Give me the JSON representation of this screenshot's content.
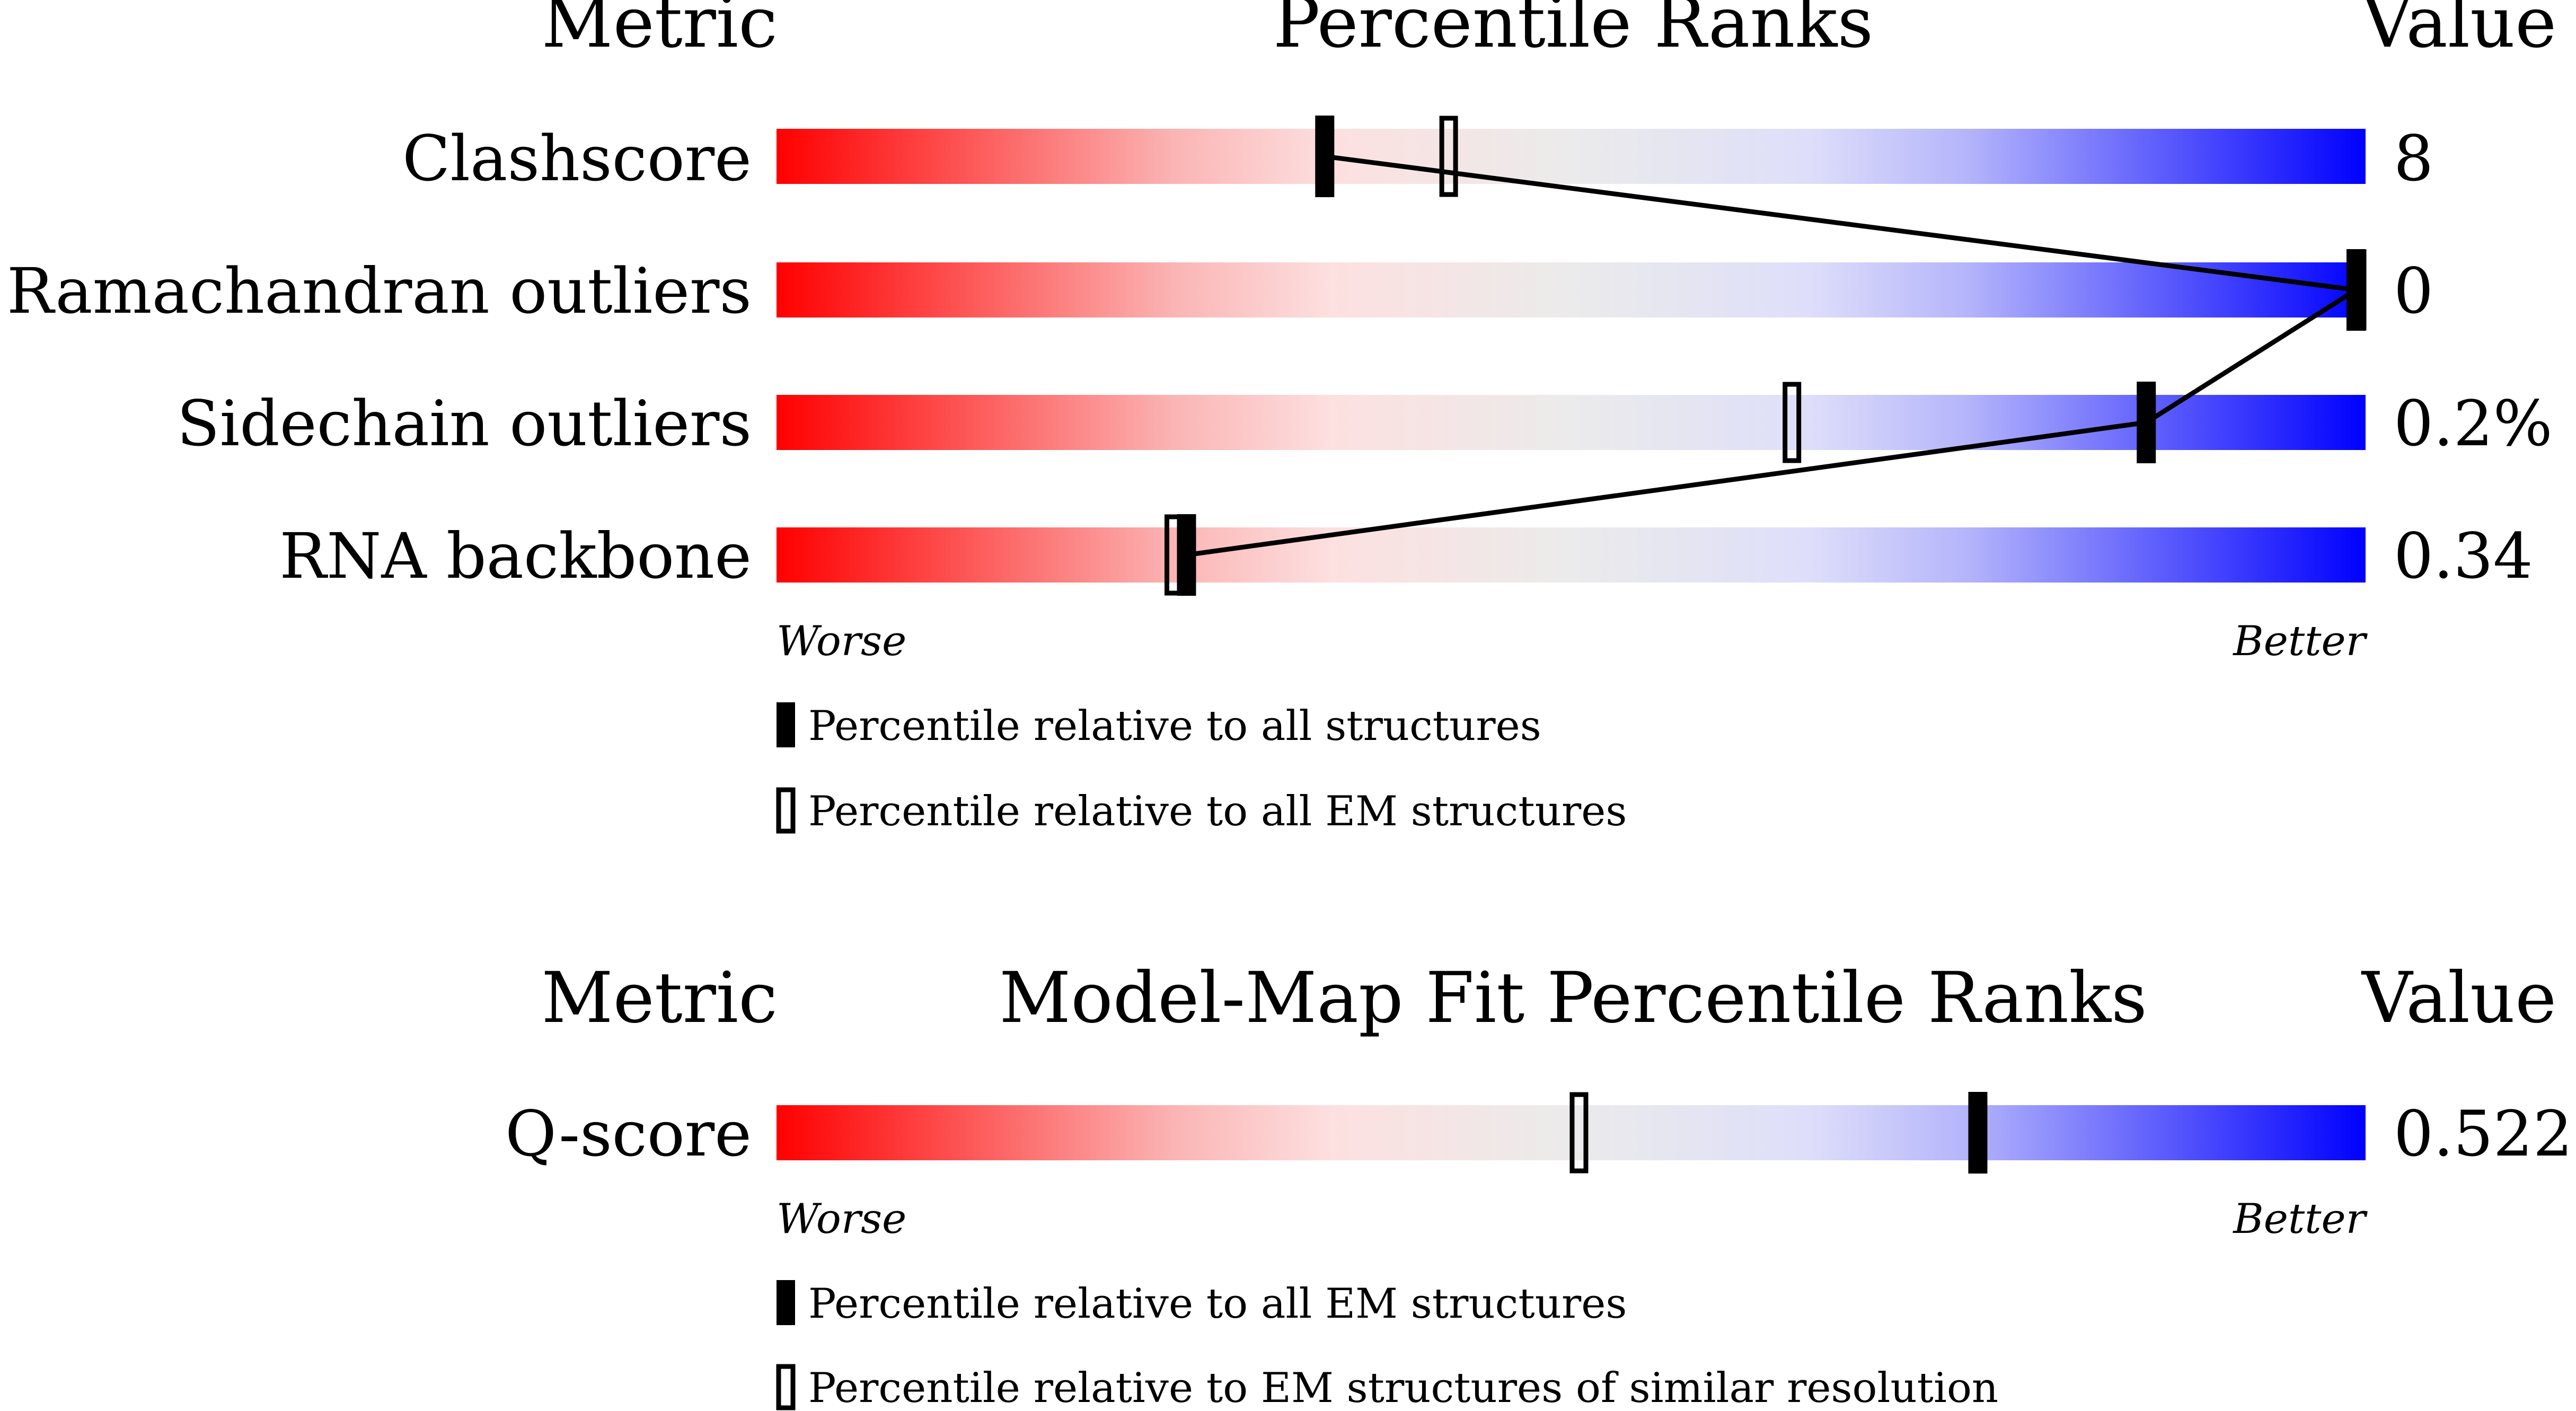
{
  "chart_data": [
    {
      "type": "percentile-ranks",
      "header": {
        "metric": "Metric",
        "title": "Percentile Ranks",
        "value": "Value"
      },
      "scale": {
        "min": 0,
        "max": 100,
        "worse_label": "Worse",
        "better_label": "Better"
      },
      "gradient": [
        "#ff0000",
        "#fde0e0",
        "#ebebeb",
        "#dedefa",
        "#0000ff"
      ],
      "rows": [
        {
          "metric": "Clashscore",
          "value": "8",
          "percentile_all": 34.5,
          "percentile_em": 42.3
        },
        {
          "metric": "Ramachandran outliers",
          "value": "0",
          "percentile_all": 100,
          "percentile_em": 100
        },
        {
          "metric": "Sidechain outliers",
          "value": "0.2%",
          "percentile_all": 86.2,
          "percentile_em": 63.9
        },
        {
          "metric": "RNA backbone",
          "value": "0.34",
          "percentile_all": 25.8,
          "percentile_em": 25.0
        }
      ],
      "connect_line": true,
      "legend": [
        {
          "style": "filled",
          "label": "Percentile relative to all structures"
        },
        {
          "style": "hollow",
          "label": "Percentile relative to all EM structures"
        }
      ]
    },
    {
      "type": "percentile-ranks",
      "header": {
        "metric": "Metric",
        "title": "Model-Map Fit Percentile Ranks",
        "value": "Value"
      },
      "scale": {
        "min": 0,
        "max": 100,
        "worse_label": "Worse",
        "better_label": "Better"
      },
      "gradient": [
        "#ff0000",
        "#fde0e0",
        "#ebebeb",
        "#dedefa",
        "#0000ff"
      ],
      "rows": [
        {
          "metric": "Q-score",
          "value": "0.522",
          "percentile_all": 75.6,
          "percentile_em": 50.5
        }
      ],
      "connect_line": false,
      "legend": [
        {
          "style": "filled",
          "label": "Percentile relative to all EM structures"
        },
        {
          "style": "hollow",
          "label": "Percentile relative to EM structures of similar resolution"
        }
      ]
    }
  ]
}
